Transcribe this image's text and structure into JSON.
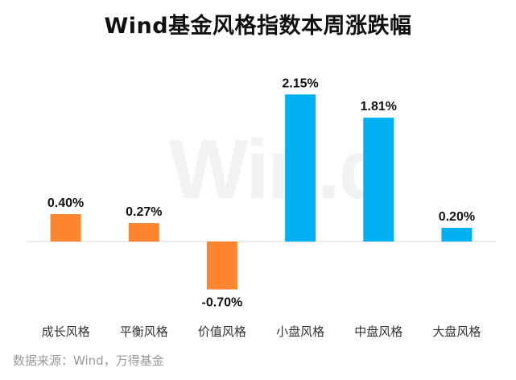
{
  "header": {
    "title": "Wind基金风格指数本周涨跌幅"
  },
  "watermark": {
    "text": "Win.d"
  },
  "footer": {
    "source": "数据来源：Wind，万得基金"
  },
  "colors": {
    "growth_value": "#fd8530",
    "size": "#00b0f0",
    "baseline": "#d9d9d9"
  },
  "chart_data": {
    "type": "bar",
    "title": "Wind基金风格指数本周涨跌幅",
    "xlabel": "",
    "ylabel": "",
    "ylim": [
      -1.0,
      2.4
    ],
    "grid": false,
    "categories": [
      "成长风格",
      "平衡风格",
      "价值风格",
      "小盘风格",
      "中盘风格",
      "大盘风格"
    ],
    "values": [
      0.4,
      0.27,
      -0.7,
      2.15,
      1.81,
      0.2
    ],
    "value_labels": [
      "0.40%",
      "0.27%",
      "-0.70%",
      "2.15%",
      "1.81%",
      "0.20%"
    ],
    "bar_colors": [
      "#fd8530",
      "#fd8530",
      "#fd8530",
      "#00b0f0",
      "#00b0f0",
      "#00b0f0"
    ]
  }
}
